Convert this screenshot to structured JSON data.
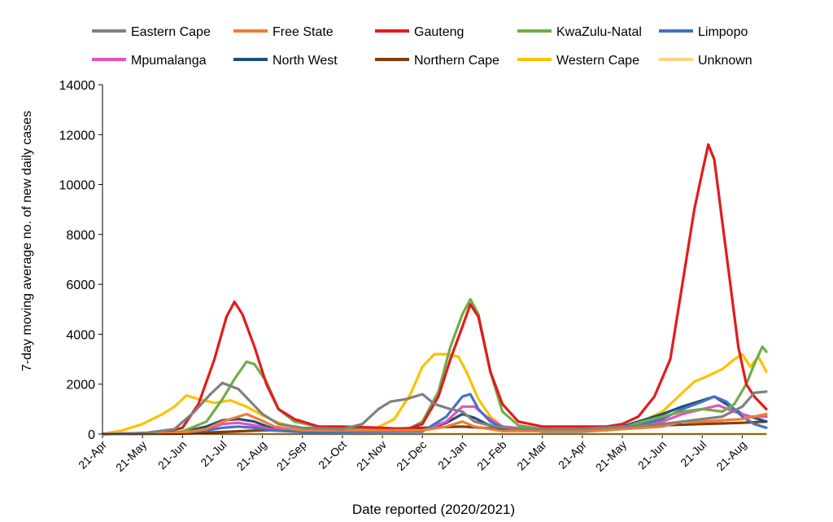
{
  "chart_data": {
    "type": "line",
    "xlabel": "Date reported (2020/2021)",
    "ylabel": "7-day moving average no. of new daily cases",
    "ylim": [
      0,
      14000
    ],
    "yticks": [
      0,
      2000,
      4000,
      6000,
      8000,
      10000,
      12000,
      14000
    ],
    "x_unit": "months since 21-Apr-2020",
    "xlim": [
      0,
      16.6
    ],
    "x_ticks": [
      "21-Apr",
      "21-May",
      "21-Jun",
      "21-Jul",
      "21-Aug",
      "21-Sep",
      "21-Oct",
      "21-Nov",
      "21-Dec",
      "21-Jan",
      "21-Feb",
      "21-Mar",
      "21-Apr",
      "21-May",
      "21-Jun",
      "21-Jul",
      "21-Aug"
    ],
    "grid": false,
    "legend_position": "top",
    "series": [
      {
        "name": "Eastern Cape",
        "color": "#808080",
        "points": [
          [
            0,
            0
          ],
          [
            1,
            30
          ],
          [
            1.8,
            200
          ],
          [
            2.3,
            900
          ],
          [
            2.7,
            1600
          ],
          [
            3.0,
            2050
          ],
          [
            3.4,
            1800
          ],
          [
            3.7,
            1300
          ],
          [
            4.0,
            800
          ],
          [
            4.4,
            400
          ],
          [
            5.0,
            250
          ],
          [
            6.0,
            200
          ],
          [
            6.5,
            400
          ],
          [
            6.9,
            1000
          ],
          [
            7.2,
            1300
          ],
          [
            7.6,
            1400
          ],
          [
            8.0,
            1600
          ],
          [
            8.3,
            1200
          ],
          [
            8.7,
            1000
          ],
          [
            9.0,
            900
          ],
          [
            9.3,
            500
          ],
          [
            9.8,
            300
          ],
          [
            10.5,
            200
          ],
          [
            12.0,
            200
          ],
          [
            13.0,
            300
          ],
          [
            14.0,
            400
          ],
          [
            14.5,
            500
          ],
          [
            15.0,
            600
          ],
          [
            15.5,
            700
          ],
          [
            16.0,
            1100
          ],
          [
            16.3,
            1650
          ],
          [
            16.6,
            1700
          ]
        ]
      },
      {
        "name": "Free State",
        "color": "#ed7d31",
        "points": [
          [
            0,
            0
          ],
          [
            2.0,
            50
          ],
          [
            2.6,
            200
          ],
          [
            3.0,
            500
          ],
          [
            3.3,
            650
          ],
          [
            3.6,
            800
          ],
          [
            3.9,
            600
          ],
          [
            4.3,
            300
          ],
          [
            5.0,
            150
          ],
          [
            8.0,
            150
          ],
          [
            8.6,
            300
          ],
          [
            9.0,
            500
          ],
          [
            9.3,
            300
          ],
          [
            10.0,
            120
          ],
          [
            12.0,
            120
          ],
          [
            13.0,
            200
          ],
          [
            14.0,
            300
          ],
          [
            14.5,
            500
          ],
          [
            15.0,
            500
          ],
          [
            16.0,
            600
          ],
          [
            16.6,
            800
          ]
        ]
      },
      {
        "name": "Gauteng",
        "color": "#e41a1c",
        "points": [
          [
            0,
            0
          ],
          [
            1.5,
            50
          ],
          [
            2.0,
            250
          ],
          [
            2.4,
            1200
          ],
          [
            2.8,
            3000
          ],
          [
            3.1,
            4700
          ],
          [
            3.3,
            5300
          ],
          [
            3.5,
            4800
          ],
          [
            3.8,
            3500
          ],
          [
            4.1,
            2000
          ],
          [
            4.4,
            1000
          ],
          [
            4.8,
            600
          ],
          [
            5.4,
            300
          ],
          [
            6.0,
            300
          ],
          [
            7.0,
            250
          ],
          [
            7.6,
            200
          ],
          [
            8.0,
            400
          ],
          [
            8.4,
            1500
          ],
          [
            8.7,
            3000
          ],
          [
            9.0,
            4300
          ],
          [
            9.2,
            5200
          ],
          [
            9.4,
            4700
          ],
          [
            9.7,
            2500
          ],
          [
            10.0,
            1200
          ],
          [
            10.4,
            500
          ],
          [
            11.0,
            300
          ],
          [
            12.0,
            300
          ],
          [
            12.6,
            300
          ],
          [
            13.0,
            400
          ],
          [
            13.4,
            700
          ],
          [
            13.8,
            1500
          ],
          [
            14.2,
            3000
          ],
          [
            14.5,
            6000
          ],
          [
            14.8,
            9000
          ],
          [
            15.0,
            10500
          ],
          [
            15.15,
            11600
          ],
          [
            15.3,
            11000
          ],
          [
            15.5,
            8500
          ],
          [
            15.7,
            6000
          ],
          [
            15.9,
            3500
          ],
          [
            16.1,
            2000
          ],
          [
            16.3,
            1500
          ],
          [
            16.6,
            1000
          ]
        ]
      },
      {
        "name": "KwaZulu-Natal",
        "color": "#70ad47",
        "points": [
          [
            0,
            0
          ],
          [
            1.5,
            30
          ],
          [
            2.0,
            100
          ],
          [
            2.6,
            500
          ],
          [
            3.0,
            1400
          ],
          [
            3.3,
            2200
          ],
          [
            3.6,
            2900
          ],
          [
            3.8,
            2800
          ],
          [
            4.1,
            2100
          ],
          [
            4.4,
            1000
          ],
          [
            4.8,
            500
          ],
          [
            5.4,
            300
          ],
          [
            6.0,
            200
          ],
          [
            7.0,
            150
          ],
          [
            7.6,
            150
          ],
          [
            8.0,
            500
          ],
          [
            8.4,
            1700
          ],
          [
            8.7,
            3500
          ],
          [
            9.0,
            4800
          ],
          [
            9.2,
            5400
          ],
          [
            9.4,
            4800
          ],
          [
            9.7,
            2500
          ],
          [
            10.0,
            900
          ],
          [
            10.4,
            350
          ],
          [
            11.0,
            200
          ],
          [
            12.0,
            150
          ],
          [
            12.6,
            150
          ],
          [
            13.0,
            250
          ],
          [
            13.5,
            500
          ],
          [
            14.0,
            700
          ],
          [
            14.5,
            900
          ],
          [
            15.0,
            1000
          ],
          [
            15.5,
            900
          ],
          [
            15.8,
            1200
          ],
          [
            16.1,
            2000
          ],
          [
            16.3,
            2800
          ],
          [
            16.5,
            3500
          ],
          [
            16.6,
            3300
          ]
        ]
      },
      {
        "name": "Limpopo",
        "color": "#4472c4",
        "points": [
          [
            0,
            0
          ],
          [
            2.0,
            50
          ],
          [
            2.6,
            150
          ],
          [
            3.0,
            250
          ],
          [
            3.4,
            300
          ],
          [
            3.8,
            250
          ],
          [
            4.2,
            150
          ],
          [
            5.0,
            80
          ],
          [
            8.0,
            100
          ],
          [
            8.6,
            700
          ],
          [
            9.0,
            1500
          ],
          [
            9.2,
            1600
          ],
          [
            9.4,
            1000
          ],
          [
            9.7,
            500
          ],
          [
            10.0,
            250
          ],
          [
            11.0,
            100
          ],
          [
            12.0,
            100
          ],
          [
            13.0,
            200
          ],
          [
            14.0,
            600
          ],
          [
            14.5,
            1000
          ],
          [
            15.0,
            1300
          ],
          [
            15.3,
            1500
          ],
          [
            15.6,
            1300
          ],
          [
            16.0,
            700
          ],
          [
            16.3,
            400
          ],
          [
            16.6,
            250
          ]
        ]
      },
      {
        "name": "Mpumalanga",
        "color": "#e84fc0",
        "points": [
          [
            0,
            0
          ],
          [
            2.0,
            50
          ],
          [
            2.6,
            200
          ],
          [
            3.0,
            400
          ],
          [
            3.4,
            450
          ],
          [
            3.8,
            350
          ],
          [
            4.2,
            200
          ],
          [
            5.0,
            100
          ],
          [
            8.0,
            150
          ],
          [
            8.6,
            500
          ],
          [
            9.0,
            1100
          ],
          [
            9.3,
            1100
          ],
          [
            9.6,
            700
          ],
          [
            10.0,
            300
          ],
          [
            11.0,
            150
          ],
          [
            12.0,
            150
          ],
          [
            13.0,
            250
          ],
          [
            14.0,
            500
          ],
          [
            14.5,
            800
          ],
          [
            15.0,
            1000
          ],
          [
            15.4,
            1150
          ],
          [
            15.8,
            900
          ],
          [
            16.2,
            700
          ],
          [
            16.6,
            700
          ]
        ]
      },
      {
        "name": "North West",
        "color": "#1f4e79",
        "points": [
          [
            0,
            0
          ],
          [
            2.0,
            80
          ],
          [
            2.6,
            300
          ],
          [
            3.0,
            550
          ],
          [
            3.4,
            600
          ],
          [
            3.8,
            500
          ],
          [
            4.2,
            250
          ],
          [
            5.0,
            120
          ],
          [
            8.0,
            150
          ],
          [
            8.6,
            450
          ],
          [
            9.0,
            800
          ],
          [
            9.3,
            650
          ],
          [
            9.6,
            400
          ],
          [
            10.0,
            200
          ],
          [
            11.0,
            120
          ],
          [
            12.0,
            150
          ],
          [
            13.0,
            300
          ],
          [
            14.0,
            800
          ],
          [
            14.5,
            1100
          ],
          [
            15.0,
            1350
          ],
          [
            15.3,
            1500
          ],
          [
            15.6,
            1200
          ],
          [
            16.0,
            800
          ],
          [
            16.4,
            600
          ],
          [
            16.6,
            500
          ]
        ]
      },
      {
        "name": "Northern Cape",
        "color": "#843c0c",
        "points": [
          [
            0,
            0
          ],
          [
            2.0,
            20
          ],
          [
            3.0,
            80
          ],
          [
            4.0,
            150
          ],
          [
            5.0,
            150
          ],
          [
            6.0,
            200
          ],
          [
            7.0,
            200
          ],
          [
            8.0,
            250
          ],
          [
            9.0,
            300
          ],
          [
            10.0,
            200
          ],
          [
            11.0,
            150
          ],
          [
            12.0,
            200
          ],
          [
            13.0,
            300
          ],
          [
            14.0,
            350
          ],
          [
            15.0,
            400
          ],
          [
            16.0,
            450
          ],
          [
            16.6,
            500
          ]
        ]
      },
      {
        "name": "Western Cape",
        "color": "#ffc000",
        "points": [
          [
            0,
            0
          ],
          [
            0.5,
            150
          ],
          [
            1.0,
            400
          ],
          [
            1.5,
            800
          ],
          [
            1.8,
            1100
          ],
          [
            2.1,
            1550
          ],
          [
            2.4,
            1400
          ],
          [
            2.8,
            1250
          ],
          [
            3.2,
            1350
          ],
          [
            3.6,
            1100
          ],
          [
            4.0,
            750
          ],
          [
            4.4,
            450
          ],
          [
            5.0,
            200
          ],
          [
            6.0,
            150
          ],
          [
            6.8,
            200
          ],
          [
            7.3,
            600
          ],
          [
            7.7,
            1600
          ],
          [
            8.0,
            2700
          ],
          [
            8.3,
            3200
          ],
          [
            8.6,
            3200
          ],
          [
            8.9,
            3100
          ],
          [
            9.1,
            2500
          ],
          [
            9.4,
            1400
          ],
          [
            9.7,
            700
          ],
          [
            10.0,
            300
          ],
          [
            11.0,
            150
          ],
          [
            12.0,
            120
          ],
          [
            12.6,
            150
          ],
          [
            13.0,
            250
          ],
          [
            13.5,
            500
          ],
          [
            14.0,
            900
          ],
          [
            14.4,
            1500
          ],
          [
            14.8,
            2100
          ],
          [
            15.1,
            2300
          ],
          [
            15.5,
            2600
          ],
          [
            15.8,
            3000
          ],
          [
            16.0,
            3200
          ],
          [
            16.2,
            2700
          ],
          [
            16.4,
            3100
          ],
          [
            16.6,
            2500
          ]
        ]
      },
      {
        "name": "Unknown",
        "color": "#ffd480",
        "points": [
          [
            0,
            0
          ],
          [
            16.6,
            0
          ]
        ]
      }
    ]
  }
}
